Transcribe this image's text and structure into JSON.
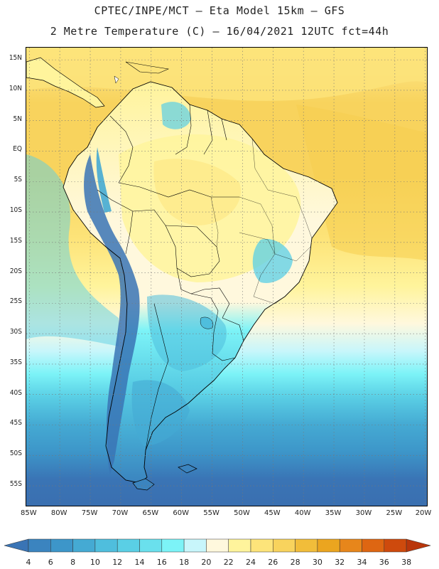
{
  "header": {
    "title_line1": "CPTEC/INPE/MCT –  Eta Model 15km – GFS",
    "title_line2": "2 Metre Temperature (C) – 16/04/2021 12UTC fct=44h"
  },
  "map": {
    "lat_labels": [
      "15N",
      "10N",
      "5N",
      "EQ",
      "5S",
      "10S",
      "15S",
      "20S",
      "25S",
      "30S",
      "35S",
      "40S",
      "45S",
      "50S",
      "55S"
    ],
    "lat_values": [
      15,
      10,
      5,
      0,
      -5,
      -10,
      -15,
      -20,
      -25,
      -30,
      -35,
      -40,
      -45,
      -50,
      -55
    ],
    "lon_labels": [
      "85W",
      "80W",
      "75W",
      "70W",
      "65W",
      "60W",
      "55W",
      "50W",
      "45W",
      "40W",
      "35W",
      "30W",
      "25W",
      "20W"
    ],
    "lon_values": [
      -85,
      -80,
      -75,
      -70,
      -65,
      -60,
      -55,
      -50,
      -45,
      -40,
      -35,
      -30,
      -25,
      -20
    ],
    "extent": {
      "lon_min": -85.5,
      "lon_max": -19.5,
      "lat_min": -58.5,
      "lat_max": 17
    },
    "grid": true
  },
  "legend": {
    "labels": [
      "4",
      "6",
      "8",
      "10",
      "12",
      "14",
      "16",
      "18",
      "20",
      "22",
      "24",
      "26",
      "28",
      "30",
      "32",
      "34",
      "36",
      "38"
    ],
    "colors": [
      "#3a74b5",
      "#3b84bf",
      "#3d96c9",
      "#45aad3",
      "#4fbedd",
      "#5acfe5",
      "#6ae0ed",
      "#7cf3f7",
      "#c8f6fb",
      "#fff8dd",
      "#fff49c",
      "#fde47a",
      "#f8d35d",
      "#f1bd3a",
      "#eba51f",
      "#e7861b",
      "#de6612",
      "#ce4a0d",
      "#b9360b"
    ]
  }
}
